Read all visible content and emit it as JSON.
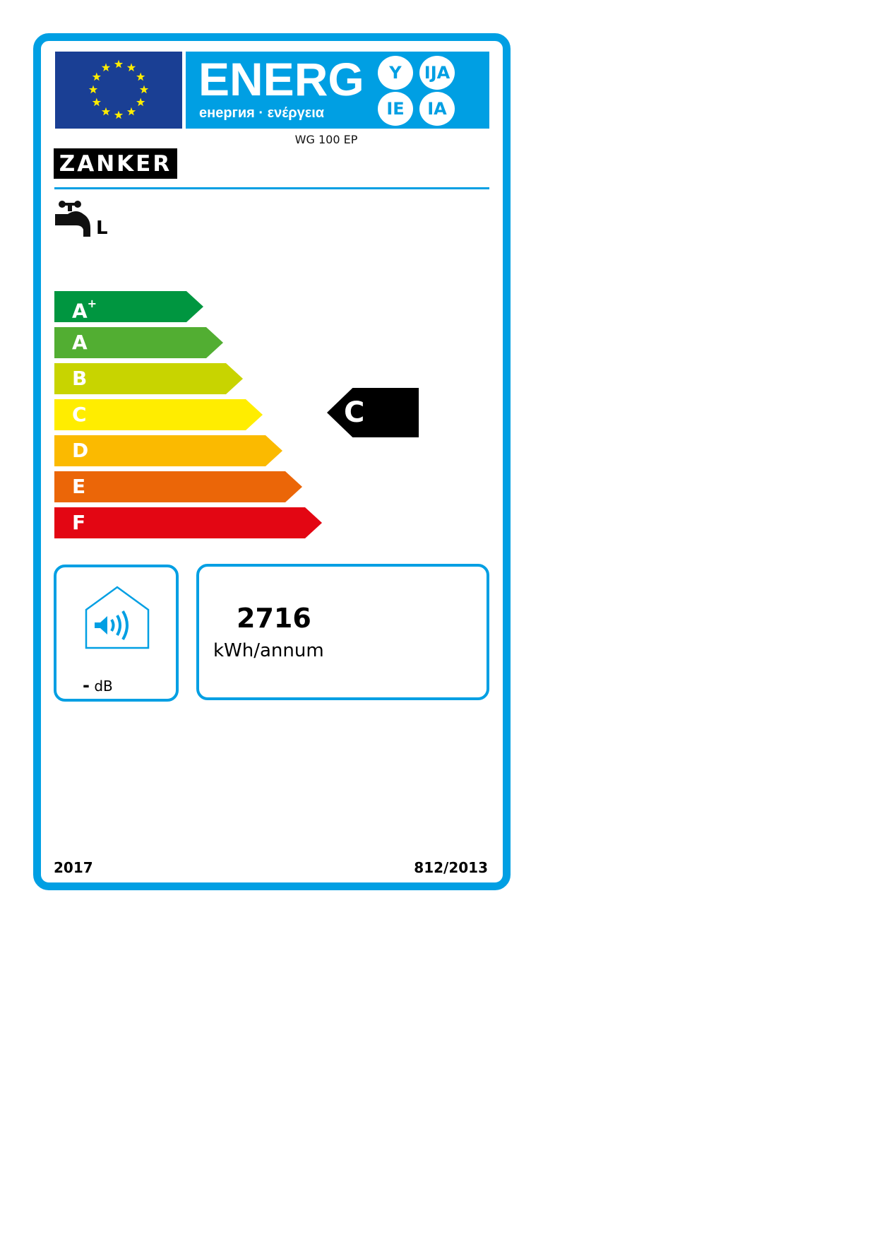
{
  "header": {
    "energy_word": "ENERG",
    "energy_subtitle": "енергия · ενέργεια",
    "language_badges": [
      "Y",
      "IJA",
      "IE",
      "IA"
    ],
    "eu_flag_icon": "eu-flag-icon"
  },
  "product": {
    "model": "WG 100 EP",
    "brand": "ZANKER",
    "load_profile": "L",
    "tap_icon": "water-tap-icon"
  },
  "scale": {
    "classes": [
      {
        "label": "A",
        "sup": "+",
        "color": "#009640"
      },
      {
        "label": "A",
        "sup": "",
        "color": "#52ae32"
      },
      {
        "label": "B",
        "sup": "",
        "color": "#c8d400"
      },
      {
        "label": "C",
        "sup": "",
        "color": "#ffed00"
      },
      {
        "label": "D",
        "sup": "",
        "color": "#fbba00"
      },
      {
        "label": "E",
        "sup": "",
        "color": "#eb6608"
      },
      {
        "label": "F",
        "sup": "",
        "color": "#e30613"
      }
    ],
    "rating": "C"
  },
  "sound": {
    "value": "-",
    "unit": "dB",
    "icon": "speaker-house-icon"
  },
  "consumption": {
    "value": "2716",
    "unit": "kWh/annum"
  },
  "footer": {
    "year": "2017",
    "regulation": "812/2013"
  },
  "colors": {
    "frame": "#009fe3",
    "flag": "#1a3f94",
    "stars": "#ffed00"
  }
}
